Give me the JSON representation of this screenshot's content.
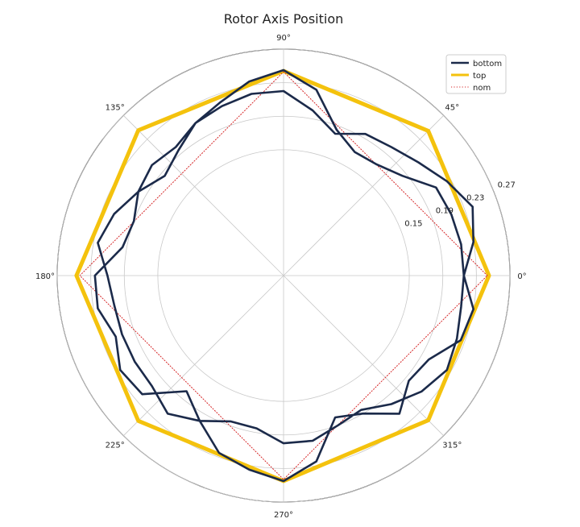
{
  "chart_data": {
    "type": "polar-line",
    "title": "Rotor Axis Position",
    "angle_ticks": [
      "0°",
      "45°",
      "90°",
      "135°",
      "180°",
      "225°",
      "270°",
      "315°"
    ],
    "angle_tick_values_deg": [
      0,
      45,
      90,
      135,
      180,
      225,
      270,
      315
    ],
    "radial_ticks": [
      "0.15",
      "0.19",
      "0.23",
      "0.27"
    ],
    "radial_tick_values": [
      0.15,
      0.19,
      0.23,
      0.27
    ],
    "radial_range": [
      0.0,
      0.27
    ],
    "radial_label_angle_deg": 22.5,
    "grid": true,
    "legend_position": "top-right",
    "series": [
      {
        "name": "bottom",
        "color": "#1b2a4a",
        "style": "solid",
        "points": [
          [
            0,
            0.215
          ],
          [
            10,
            0.215
          ],
          [
            20,
            0.213
          ],
          [
            30,
            0.21
          ],
          [
            40,
            0.185
          ],
          [
            50,
            0.173
          ],
          [
            60,
            0.17
          ],
          [
            70,
            0.185
          ],
          [
            80,
            0.225
          ],
          [
            90,
            0.245
          ],
          [
            100,
            0.235
          ],
          [
            110,
            0.22
          ],
          [
            120,
            0.21
          ],
          [
            130,
            0.2
          ],
          [
            140,
            0.205
          ],
          [
            150,
            0.2
          ],
          [
            160,
            0.19
          ],
          [
            170,
            0.195
          ],
          [
            180,
            0.225
          ],
          [
            190,
            0.225
          ],
          [
            200,
            0.213
          ],
          [
            210,
            0.225
          ],
          [
            220,
            0.22
          ],
          [
            230,
            0.18
          ],
          [
            240,
            0.2
          ],
          [
            250,
            0.225
          ],
          [
            260,
            0.235
          ],
          [
            270,
            0.245
          ],
          [
            280,
            0.225
          ],
          [
            290,
            0.18
          ],
          [
            300,
            0.19
          ],
          [
            310,
            0.215
          ],
          [
            320,
            0.195
          ],
          [
            330,
            0.2
          ],
          [
            340,
            0.225
          ],
          [
            350,
            0.23
          ],
          [
            360,
            0.215
          ],
          [
            370,
            0.23
          ],
          [
            380,
            0.24
          ],
          [
            390,
            0.225
          ],
          [
            400,
            0.21
          ],
          [
            410,
            0.2
          ],
          [
            420,
            0.195
          ],
          [
            430,
            0.18
          ],
          [
            440,
            0.2
          ],
          [
            450,
            0.22
          ],
          [
            460,
            0.22
          ],
          [
            470,
            0.215
          ],
          [
            480,
            0.21
          ],
          [
            490,
            0.195
          ],
          [
            500,
            0.185
          ],
          [
            510,
            0.2
          ],
          [
            520,
            0.215
          ],
          [
            530,
            0.225
          ],
          [
            540,
            0.21
          ],
          [
            550,
            0.205
          ],
          [
            560,
            0.205
          ],
          [
            570,
            0.205
          ],
          [
            580,
            0.205
          ],
          [
            590,
            0.215
          ],
          [
            600,
            0.2
          ],
          [
            610,
            0.185
          ],
          [
            620,
            0.185
          ],
          [
            630,
            0.2
          ],
          [
            640,
            0.2
          ],
          [
            650,
            0.19
          ],
          [
            660,
            0.185
          ],
          [
            670,
            0.2
          ],
          [
            680,
            0.215
          ],
          [
            690,
            0.225
          ],
          [
            700,
            0.22
          ],
          [
            710,
            0.215
          ],
          [
            720,
            0.215
          ]
        ]
      },
      {
        "name": "top",
        "color": "#f4c20d",
        "style": "solid",
        "points": [
          [
            0,
            0.245
          ],
          [
            45,
            0.244
          ],
          [
            90,
            0.244
          ],
          [
            135,
            0.245
          ],
          [
            180,
            0.247
          ],
          [
            225,
            0.245
          ],
          [
            270,
            0.245
          ],
          [
            315,
            0.244
          ],
          [
            360,
            0.245
          ]
        ]
      },
      {
        "name": "nom",
        "color": "#d62728",
        "style": "dotted",
        "points": [
          [
            0,
            0.243
          ],
          [
            90,
            0.243
          ],
          [
            180,
            0.243
          ],
          [
            270,
            0.243
          ],
          [
            360,
            0.243
          ]
        ]
      }
    ]
  }
}
